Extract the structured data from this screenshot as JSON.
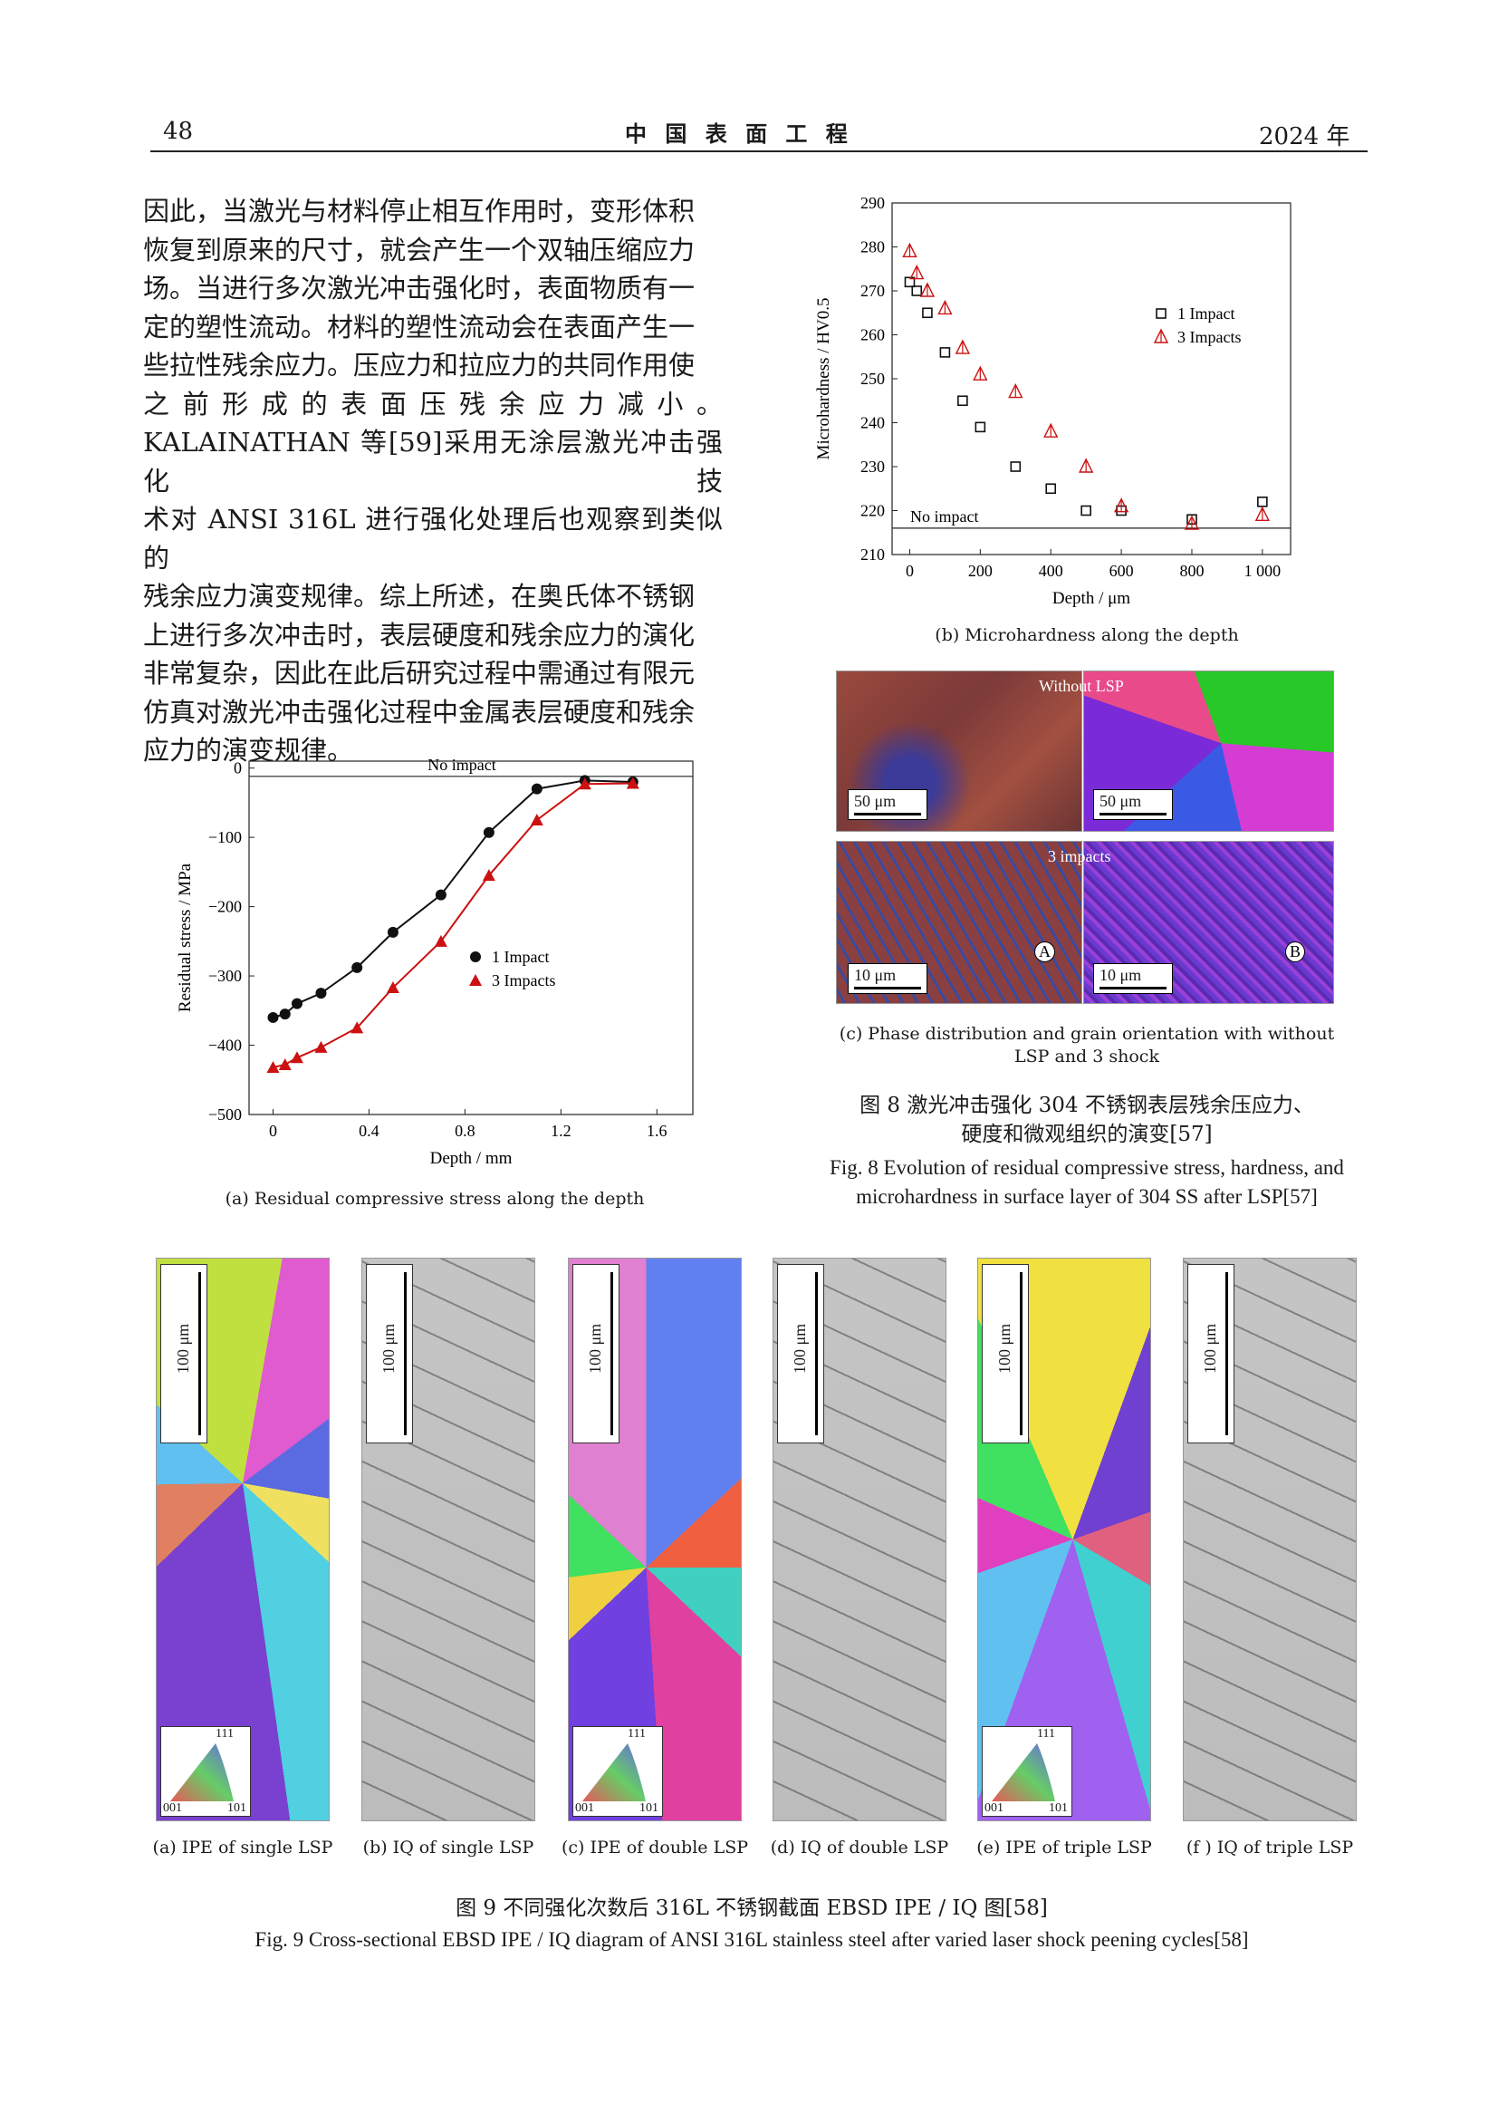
{
  "header": {
    "page_number": "48",
    "journal": "中 国 表 面 工 程",
    "year": "2024 年"
  },
  "body_text": {
    "lines": [
      "因此，当激光与材料停止相互作用时，变形体积",
      "恢复到原来的尺寸，就会产生一个双轴压缩应力",
      "场。当进行多次激光冲击强化时，表面物质有一",
      "定的塑性流动。材料的塑性流动会在表面产生一",
      "些拉性残余应力。压应力和拉应力的共同作用使",
      "之 前 形 成 的 表 面 压 残 余 应 力 减 小 。",
      "KALAINATHAN 等[59]采用无涂层激光冲击强化技",
      "术对 ANSI 316L 进行强化处理后也观察到类似的",
      "残余应力演变规律。综上所述，在奥氏体不锈钢",
      "上进行多次冲击时，表层硬度和残余应力的演化",
      "非常复杂，因此在此后研究过程中需通过有限元",
      "仿真对激光冲击强化过程中金属表层硬度和残余",
      "应力的演变规律。"
    ]
  },
  "fig8": {
    "panel_a_caption": "(a) Residual compressive stress along the depth",
    "panel_b_caption": "(b) Microhardness along the depth",
    "panel_c_caption_line1": "(c) Phase distribution and grain orientation with without",
    "panel_c_caption_line2": "LSP and 3 shock",
    "panel_c": {
      "label_without": "Without LSP",
      "label_3impacts": "3 impacts",
      "scale_50_left": "50 μm",
      "scale_50_right": "50 μm",
      "scale_10_left": "10 μm",
      "scale_10_right": "10 μm",
      "marker_a": "A",
      "marker_b": "B"
    },
    "caption_zh_line1": "图 8   激光冲击强化 304 不锈钢表层残余压应力、",
    "caption_zh_line2": "硬度和微观组织的演变[57]",
    "caption_en_line1": "Fig. 8   Evolution of residual compressive stress, hardness, and",
    "caption_en_line2": "microhardness in surface layer of 304 SS after LSP[57]"
  },
  "fig9": {
    "scale_label": "100 μm",
    "key_labels": {
      "top": "111",
      "left": "001",
      "right": "101"
    },
    "captions": [
      "(a) IPE of single LSP",
      "(b) IQ of single LSP",
      "(c) IPE of double LSP",
      "(d) IQ of double LSP",
      "(e) IPE of triple LSP",
      "(f ) IQ of triple LSP"
    ],
    "caption_zh": "图 9   不同强化次数后 316L 不锈钢截面 EBSD IPE / IQ 图[58]",
    "caption_en": "Fig. 9   Cross-sectional EBSD IPE / IQ diagram of ANSI 316L stainless steel after varied laser shock peening cycles[58]"
  },
  "chart_data": [
    {
      "type": "scatter",
      "xlabel": "Depth / mm",
      "ylabel": "Residual stress / MPa",
      "xlim": [
        -0.1,
        1.75
      ],
      "ylim": [
        -500,
        10
      ],
      "xticks": [
        "0",
        "0.4",
        "0.8",
        "1.2",
        "1.6"
      ],
      "xtick_values": [
        0,
        0.4,
        0.8,
        1.2,
        1.6
      ],
      "yticks": [
        "0",
        "−100",
        "−200",
        "−300",
        "−400",
        "−500"
      ],
      "ytick_values": [
        0,
        -100,
        -200,
        -300,
        -400,
        -500
      ],
      "reference_line": {
        "label": "No impact",
        "y": -12
      },
      "legend_position": "center-right",
      "series": [
        {
          "name": "1 Impact",
          "marker": "circle",
          "color": "#111111",
          "x": [
            0,
            0.05,
            0.1,
            0.2,
            0.35,
            0.5,
            0.7,
            0.9,
            1.1,
            1.3,
            1.5
          ],
          "y": [
            -360,
            -355,
            -340,
            -325,
            -288,
            -237,
            -183,
            -93,
            -30,
            -18,
            -20
          ]
        },
        {
          "name": "3 Impacts",
          "marker": "triangle",
          "color": "#cc1111",
          "x": [
            0,
            0.05,
            0.1,
            0.2,
            0.35,
            0.5,
            0.7,
            0.9,
            1.1,
            1.3,
            1.5
          ],
          "y": [
            -432,
            -428,
            -418,
            -403,
            -375,
            -317,
            -250,
            -155,
            -75,
            -23,
            -22
          ]
        }
      ]
    },
    {
      "type": "scatter",
      "xlabel": "Depth / μm",
      "ylabel": "Microhardness / HV0.5",
      "xlim": [
        -50,
        1080
      ],
      "ylim": [
        210,
        290
      ],
      "xticks": [
        "0",
        "200",
        "400",
        "600",
        "800",
        "1 000"
      ],
      "xtick_values": [
        0,
        200,
        400,
        600,
        800,
        1000
      ],
      "yticks": [
        "290",
        "280",
        "270",
        "260",
        "250",
        "240",
        "230",
        "220",
        "210"
      ],
      "ytick_values": [
        290,
        280,
        270,
        260,
        250,
        240,
        230,
        220,
        210
      ],
      "reference_line": {
        "label": "No impact",
        "y": 216
      },
      "legend_position": "top-right",
      "series": [
        {
          "name": "1 Impact",
          "marker": "square",
          "color": "#111111",
          "x": [
            0,
            20,
            50,
            100,
            150,
            200,
            300,
            400,
            500,
            600,
            800,
            1000
          ],
          "y": [
            272,
            270,
            265,
            256,
            245,
            239,
            230,
            225,
            220,
            220,
            218,
            222
          ]
        },
        {
          "name": "3 Impacts",
          "marker": "triangle-open",
          "color": "#cc1111",
          "x": [
            0,
            20,
            50,
            100,
            150,
            200,
            300,
            400,
            500,
            600,
            800,
            1000
          ],
          "y": [
            279,
            274,
            270,
            266,
            257,
            251,
            247,
            238,
            230,
            221,
            217,
            219
          ]
        }
      ]
    }
  ]
}
